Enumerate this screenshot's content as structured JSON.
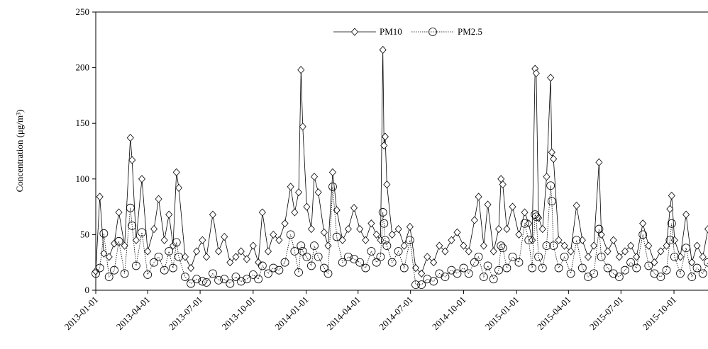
{
  "chart_data": {
    "type": "line",
    "y_label": "Concentration (μg/m³)",
    "x": [
      "2013-01-01",
      "2013-01-08",
      "2013-01-15",
      "2013-01-24",
      "2013-02-02",
      "2013-02-10",
      "2013-02-20",
      "2013-03-02",
      "2013-03-05",
      "2013-03-12",
      "2013-03-22",
      "2013-04-01",
      "2013-04-12",
      "2013-04-20",
      "2013-04-30",
      "2013-05-08",
      "2013-05-15",
      "2013-05-21",
      "2013-05-25",
      "2013-06-05",
      "2013-06-15",
      "2013-06-25",
      "2013-07-05",
      "2013-07-12",
      "2013-07-23",
      "2013-08-02",
      "2013-08-12",
      "2013-08-22",
      "2013-09-01",
      "2013-09-10",
      "2013-09-20",
      "2013-10-01",
      "2013-10-10",
      "2013-10-17",
      "2013-10-27",
      "2013-11-05",
      "2013-11-15",
      "2013-11-25",
      "2013-12-05",
      "2013-12-12",
      "2013-12-19",
      "2013-12-23",
      "2013-12-26",
      "2014-01-02",
      "2014-01-10",
      "2014-01-15",
      "2014-01-22",
      "2014-02-01",
      "2014-02-08",
      "2014-02-16",
      "2014-02-23",
      "2014-03-05",
      "2014-03-15",
      "2014-03-25",
      "2014-04-04",
      "2014-04-14",
      "2014-04-24",
      "2014-05-03",
      "2014-05-10",
      "2014-05-14",
      "2014-05-16",
      "2014-05-18",
      "2014-05-21",
      "2014-05-30",
      "2014-06-10",
      "2014-06-20",
      "2014-06-30",
      "2014-07-10",
      "2014-07-20",
      "2014-07-30",
      "2014-08-10",
      "2014-08-20",
      "2014-08-30",
      "2014-09-10",
      "2014-09-20",
      "2014-10-01",
      "2014-10-10",
      "2014-10-20",
      "2014-10-27",
      "2014-11-05",
      "2014-11-12",
      "2014-11-22",
      "2014-12-01",
      "2014-12-05",
      "2014-12-08",
      "2014-12-15",
      "2014-12-25",
      "2015-01-05",
      "2015-01-15",
      "2015-01-22",
      "2015-01-28",
      "2015-02-02",
      "2015-02-04",
      "2015-02-08",
      "2015-02-15",
      "2015-02-22",
      "2015-03-01",
      "2015-03-03",
      "2015-03-06",
      "2015-03-15",
      "2015-03-25",
      "2015-04-05",
      "2015-04-15",
      "2015-04-25",
      "2015-05-05",
      "2015-05-15",
      "2015-05-24",
      "2015-05-28",
      "2015-06-08",
      "2015-06-18",
      "2015-06-28",
      "2015-07-08",
      "2015-07-18",
      "2015-07-28",
      "2015-08-08",
      "2015-08-18",
      "2015-08-28",
      "2015-09-08",
      "2015-09-18",
      "2015-09-24",
      "2015-09-27",
      "2015-10-02",
      "2015-10-12",
      "2015-10-22",
      "2015-11-01",
      "2015-11-10",
      "2015-11-20",
      "2015-11-29"
    ],
    "series": [
      {
        "name": "PM10",
        "color": "#000000",
        "marker": "diamond",
        "values": [
          17,
          84,
          33,
          30,
          42,
          70,
          40,
          137,
          117,
          45,
          100,
          35,
          55,
          82,
          45,
          68,
          40,
          106,
          92,
          30,
          20,
          35,
          45,
          30,
          68,
          35,
          48,
          25,
          30,
          35,
          28,
          40,
          25,
          70,
          35,
          50,
          45,
          60,
          93,
          70,
          88,
          198,
          147,
          75,
          55,
          102,
          88,
          52,
          40,
          106,
          72,
          45,
          55,
          74,
          55,
          45,
          60,
          50,
          45,
          216,
          130,
          138,
          95,
          50,
          55,
          40,
          57,
          20,
          15,
          30,
          25,
          40,
          35,
          45,
          52,
          40,
          35,
          63,
          84,
          40,
          77,
          35,
          55,
          100,
          95,
          55,
          75,
          50,
          70,
          60,
          45,
          199,
          195,
          65,
          55,
          102,
          191,
          124,
          118,
          45,
          40,
          35,
          76,
          45,
          30,
          40,
          115,
          50,
          35,
          45,
          30,
          35,
          40,
          30,
          60,
          40,
          25,
          35,
          40,
          73,
          85,
          45,
          30,
          68,
          25,
          40,
          30,
          55
        ]
      },
      {
        "name": "PM2.5",
        "color": "#000000",
        "marker": "circle",
        "dashed": true,
        "values": [
          15,
          20,
          51,
          12,
          18,
          44,
          15,
          74,
          58,
          22,
          52,
          14,
          25,
          30,
          18,
          35,
          20,
          43,
          30,
          12,
          6,
          10,
          8,
          7,
          15,
          9,
          10,
          6,
          12,
          8,
          10,
          14,
          10,
          22,
          15,
          20,
          18,
          25,
          50,
          35,
          16,
          40,
          35,
          30,
          22,
          40,
          30,
          20,
          15,
          93,
          48,
          25,
          30,
          28,
          25,
          20,
          35,
          25,
          30,
          70,
          60,
          45,
          40,
          25,
          35,
          20,
          45,
          5,
          5,
          10,
          8,
          15,
          12,
          18,
          15,
          20,
          15,
          25,
          30,
          12,
          22,
          10,
          18,
          40,
          38,
          20,
          30,
          25,
          60,
          45,
          20,
          68,
          66,
          30,
          20,
          40,
          94,
          80,
          40,
          20,
          30,
          15,
          45,
          20,
          12,
          15,
          55,
          30,
          20,
          15,
          12,
          18,
          25,
          20,
          50,
          22,
          15,
          12,
          18,
          45,
          60,
          30,
          15,
          38,
          12,
          20,
          15,
          25
        ]
      }
    ],
    "xlim": [
      "2013-01-01",
      "2015-11-29"
    ],
    "xticks": [
      "2013-01-01",
      "2013-04-01",
      "2013-07-01",
      "2013-10-01",
      "2014-01-01",
      "2014-04-01",
      "2014-07-01",
      "2014-10-01",
      "2015-01-01",
      "2015-04-01",
      "2015-07-01",
      "2015-10-01"
    ],
    "ylim": [
      0,
      250
    ],
    "yticks": [
      0,
      50,
      100,
      150,
      200,
      250
    ],
    "grid": false,
    "legend": "top"
  }
}
